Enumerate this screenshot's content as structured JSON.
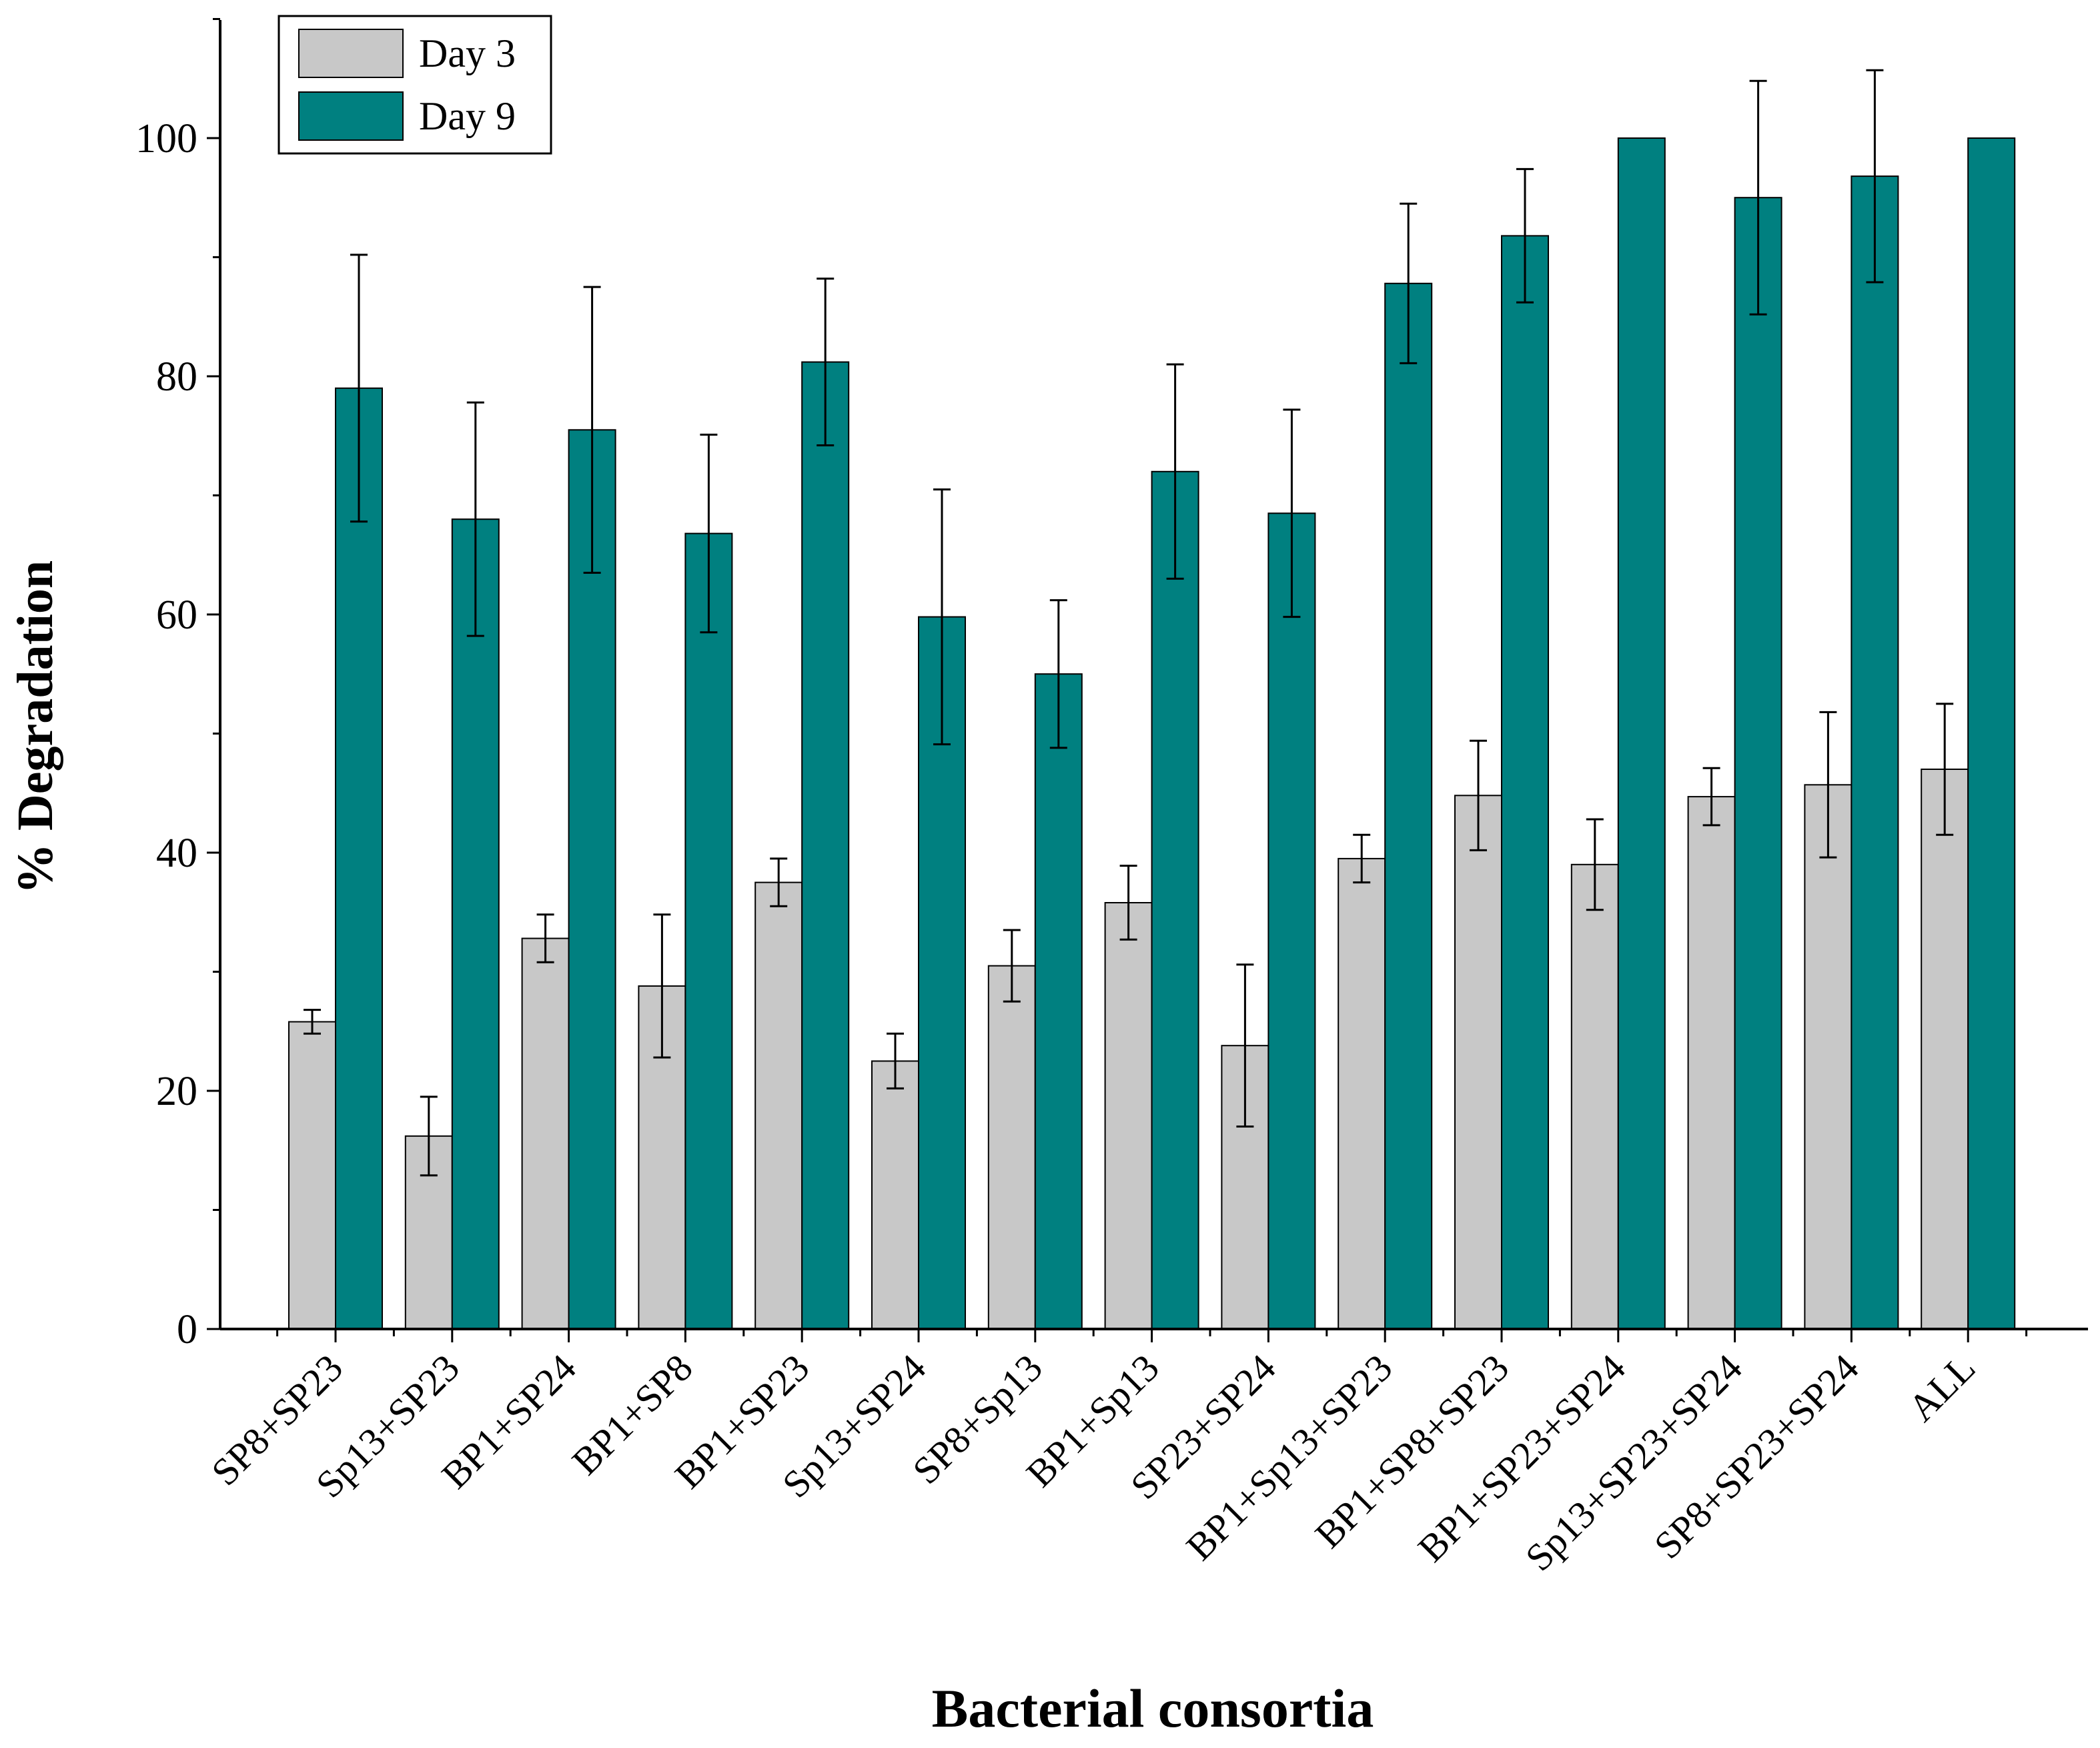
{
  "chart_data": {
    "type": "bar",
    "title": "",
    "xlabel": "Bacterial consortia",
    "ylabel": "% Degradation",
    "ylim": [
      0,
      110
    ],
    "yticks": [
      0,
      20,
      40,
      60,
      80,
      100
    ],
    "grid": false,
    "legend_position": "top-left",
    "categories": [
      "SP8+SP23",
      "Sp13+SP23",
      "BP1+SP24",
      "BP1+SP8",
      "BP1+SP23",
      "Sp13+SP24",
      "SP8+Sp13",
      "BP1+Sp13",
      "SP23+SP24",
      "BP1+Sp13+SP23",
      "BP1+SP8+SP23",
      "BP1+SP23+SP24",
      "Sp13+SP23+SP24",
      "SP8+SP23+SP24",
      "ALL"
    ],
    "series": [
      {
        "name": "Day 3",
        "color": "#c8c8c8",
        "values": [
          25.8,
          16.2,
          32.8,
          28.8,
          37.5,
          22.5,
          30.5,
          35.8,
          23.8,
          39.5,
          44.8,
          39.0,
          44.7,
          45.7,
          47.0
        ],
        "errors": [
          1.0,
          3.3,
          2.0,
          6.0,
          2.0,
          2.3,
          3.0,
          3.1,
          6.8,
          2.0,
          4.6,
          3.8,
          2.4,
          6.1,
          5.5
        ]
      },
      {
        "name": "Day 9",
        "color": "#008080",
        "values": [
          79.0,
          68.0,
          75.5,
          66.8,
          81.2,
          59.8,
          55.0,
          72.0,
          68.5,
          87.8,
          91.8,
          100.0,
          95.0,
          96.8,
          100.0
        ],
        "errors": [
          11.2,
          9.8,
          12.0,
          8.3,
          7.0,
          10.7,
          6.2,
          9.0,
          8.7,
          6.7,
          5.6,
          0,
          9.8,
          8.9,
          0
        ]
      }
    ]
  }
}
